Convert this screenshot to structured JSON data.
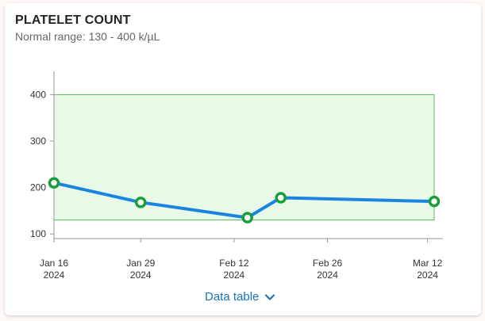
{
  "card": {
    "title": "PLATELET COUNT",
    "subtitle": "Normal range: 130 - 400 k/µL"
  },
  "footer": {
    "data_table_label": "Data table",
    "icon": "chevron-down-icon"
  },
  "colors": {
    "line": "#1a85e0",
    "marker": "#1a9e3c",
    "range_fill": "#e8f9e8",
    "range_border": "#5cb85c"
  },
  "chart_data": {
    "type": "line",
    "title": "PLATELET COUNT",
    "subtitle": "Normal range: 130 - 400 k/µL",
    "normal_range": [
      130,
      400
    ],
    "ylim": [
      90,
      440
    ],
    "yticks": [
      100,
      200,
      300,
      400
    ],
    "xlim": [
      "2024-01-16",
      "2024-03-13"
    ],
    "xticks": [
      {
        "date": "2024-01-16",
        "label": "Jan 16",
        "year": "2024"
      },
      {
        "date": "2024-01-29",
        "label": "Jan 29",
        "year": "2024"
      },
      {
        "date": "2024-02-12",
        "label": "Feb 12",
        "year": "2024"
      },
      {
        "date": "2024-02-26",
        "label": "Feb 26",
        "year": "2024"
      },
      {
        "date": "2024-03-12",
        "label": "Mar 12",
        "year": "2024"
      }
    ],
    "series": [
      {
        "points": [
          {
            "x": "2024-01-16",
            "y": 210
          },
          {
            "x": "2024-01-29",
            "y": 168
          },
          {
            "x": "2024-02-14",
            "y": 135
          },
          {
            "x": "2024-02-19",
            "y": 178
          },
          {
            "x": "2024-03-13",
            "y": 170
          }
        ]
      }
    ]
  }
}
